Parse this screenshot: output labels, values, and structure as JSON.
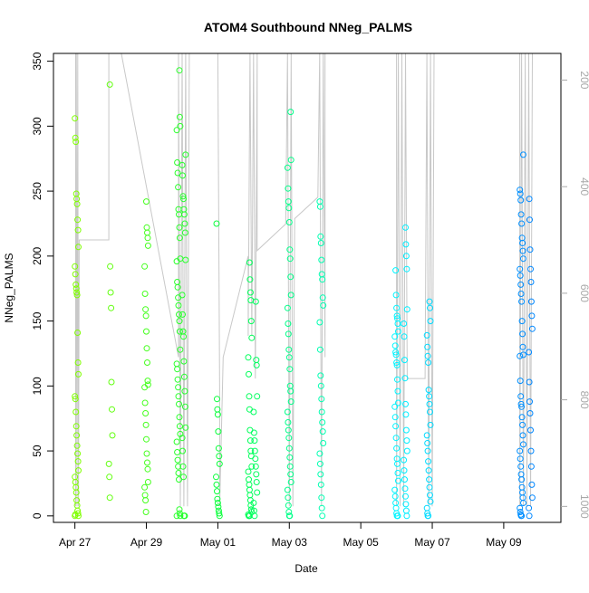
{
  "chart_data": {
    "type": "scatter",
    "title": "ATOM4 Southbound NNeg_PALMS",
    "xlabel": "Date",
    "ylabel": "NNeg_PALMS",
    "x_unit": "days since Apr 27 (00:00)",
    "xlim": [
      -0.6,
      13.6
    ],
    "ylim": [
      -5,
      356
    ],
    "x_ticks": [
      {
        "pos": 0,
        "label": "Apr 27"
      },
      {
        "pos": 2,
        "label": "Apr 29"
      },
      {
        "pos": 4,
        "label": "May 01"
      },
      {
        "pos": 6,
        "label": "May 03"
      },
      {
        "pos": 8,
        "label": "May 05"
      },
      {
        "pos": 10,
        "label": "May 07"
      },
      {
        "pos": 12,
        "label": "May 09"
      }
    ],
    "y_ticks": [
      0,
      50,
      100,
      150,
      200,
      250,
      300,
      350
    ],
    "right_axis": {
      "description": "pressure altitude (inverted)",
      "lim": [
        1030,
        150
      ],
      "ticks": [
        200,
        400,
        600,
        800,
        1000
      ],
      "color": "#a8a8a8"
    },
    "grid": false,
    "legend": "none",
    "colors": {
      "point_gradient": [
        "#80ff00",
        "#00ff40",
        "#00ffff",
        "#0080ff"
      ],
      "altitude_trace": "#c8c8c8",
      "axis": "#000000"
    },
    "sample_points_note": "points are sampled (x, y) estimates for each flight cluster",
    "clusters": [
      {
        "x": 0.05,
        "ys": [
          306,
          291,
          288,
          248,
          244,
          240,
          228,
          220,
          207,
          192,
          186,
          178,
          175,
          172,
          170,
          141,
          118,
          109,
          92,
          90,
          80,
          69,
          62,
          54,
          48,
          42,
          35,
          30,
          26,
          22,
          18,
          12,
          8,
          4,
          2,
          0,
          0,
          1
        ]
      },
      {
        "x": 1.0,
        "ys": [
          332,
          192,
          172,
          160,
          103,
          82,
          62,
          40,
          30,
          14
        ]
      },
      {
        "x": 2.0,
        "ys": [
          242,
          222,
          218,
          214,
          208,
          192,
          171,
          159,
          154,
          142,
          129,
          118,
          104,
          101,
          99,
          87,
          79,
          70,
          59,
          48,
          41,
          36,
          26,
          22,
          16,
          12,
          3
        ]
      },
      {
        "x": 2.9,
        "ys": [
          343,
          307,
          300,
          297,
          272,
          264,
          253,
          236,
          232,
          222,
          214,
          198,
          196,
          180,
          176,
          168,
          162,
          155,
          150,
          142,
          128,
          117,
          113,
          105,
          99,
          92,
          86,
          76,
          69,
          63,
          57,
          49,
          43,
          38,
          33,
          28,
          5,
          2,
          0,
          0
        ]
      },
      {
        "x": 3.05,
        "ys": [
          278,
          270,
          262,
          246,
          244,
          236,
          232,
          225,
          218,
          197,
          170,
          155,
          142,
          138,
          119,
          107,
          96,
          84,
          68,
          60,
          50,
          38,
          30,
          0,
          0,
          0
        ]
      },
      {
        "x": 4.0,
        "ys": [
          225,
          90,
          82,
          78,
          65,
          52,
          46,
          40,
          30,
          24,
          19,
          13,
          10,
          7,
          4,
          2,
          0
        ]
      },
      {
        "x": 4.9,
        "ys": [
          195,
          182,
          172,
          166,
          150,
          137,
          122,
          109,
          92,
          82,
          66,
          58,
          50,
          46,
          38,
          34,
          28,
          24,
          20,
          16,
          12,
          8,
          5,
          3,
          1,
          0,
          0,
          0
        ]
      },
      {
        "x": 5.05,
        "ys": [
          165,
          120,
          116,
          92,
          80,
          64,
          58,
          50,
          44,
          38,
          32,
          26,
          18,
          10,
          4,
          0
        ]
      },
      {
        "x": 6.0,
        "ys": [
          311,
          274,
          268,
          252,
          242,
          237,
          226,
          205,
          198,
          184,
          170,
          160,
          148,
          140,
          128,
          122,
          113,
          100,
          96,
          88,
          80,
          72,
          66,
          60,
          52,
          45,
          38,
          32,
          26,
          20,
          14,
          8,
          3,
          0,
          0
        ]
      },
      {
        "x": 6.9,
        "ys": [
          242,
          238,
          215,
          210,
          197,
          186,
          182,
          168,
          162,
          149,
          128,
          108,
          100,
          90,
          80,
          72,
          65,
          56,
          48,
          40,
          32,
          24,
          14,
          6,
          0
        ]
      },
      {
        "x": 9.0,
        "ys": [
          189,
          170,
          160,
          154,
          152,
          148,
          142,
          138,
          131,
          126,
          124,
          118,
          116,
          105,
          96,
          87,
          84,
          76,
          69,
          60,
          52,
          44,
          40,
          33,
          27,
          20,
          15,
          10,
          6,
          2,
          0,
          0,
          0
        ]
      },
      {
        "x": 9.25,
        "ys": [
          222,
          209,
          200,
          190,
          159,
          148,
          138,
          120,
          106,
          86,
          78,
          66,
          58,
          50,
          43,
          35,
          28,
          21,
          15,
          9,
          4,
          0
        ]
      },
      {
        "x": 9.9,
        "ys": [
          165,
          160,
          150,
          139,
          130,
          123,
          118,
          97,
          92,
          86,
          80,
          70,
          62,
          56,
          50,
          42,
          35,
          28,
          22,
          16,
          11,
          6,
          2,
          0,
          0
        ]
      },
      {
        "x": 12.5,
        "ys": [
          278,
          251,
          248,
          243,
          232,
          225,
          214,
          210,
          204,
          198,
          190,
          185,
          178,
          171,
          165,
          150,
          140,
          130,
          124,
          123,
          104,
          92,
          86,
          84,
          76,
          70,
          62,
          55,
          50,
          44,
          38,
          32,
          28,
          22,
          18,
          14,
          10,
          6,
          3,
          1,
          0,
          0
        ]
      },
      {
        "x": 12.75,
        "ys": [
          244,
          228,
          205,
          190,
          180,
          165,
          154,
          144,
          126,
          103,
          88,
          79,
          66,
          50,
          38,
          24,
          14,
          6,
          0
        ]
      }
    ],
    "altitude_trace": [
      {
        "x": 0.02,
        "p": 150
      },
      {
        "x": 0.02,
        "p": 1000
      },
      {
        "x": 0.04,
        "p": 150
      },
      {
        "x": 0.06,
        "p": 1000
      },
      {
        "x": 0.08,
        "p": 150
      },
      {
        "x": 0.1,
        "p": 1000
      },
      {
        "x": 0.12,
        "p": 500
      },
      {
        "x": 0.95,
        "p": 500
      },
      {
        "x": 0.95,
        "p": 150
      },
      {
        "x": 1.3,
        "p": 150
      },
      {
        "x": 2.9,
        "p": 720
      },
      {
        "x": 2.9,
        "p": 150
      },
      {
        "x": 2.95,
        "p": 1000
      },
      {
        "x": 3.0,
        "p": 150
      },
      {
        "x": 3.05,
        "p": 1000
      },
      {
        "x": 3.1,
        "p": 150
      },
      {
        "x": 3.15,
        "p": 1000
      },
      {
        "x": 3.2,
        "p": 150
      },
      {
        "x": 4.0,
        "p": 150
      },
      {
        "x": 4.05,
        "p": 790
      },
      {
        "x": 4.05,
        "p": 1000
      },
      {
        "x": 4.15,
        "p": 720
      },
      {
        "x": 4.85,
        "p": 530
      },
      {
        "x": 4.85,
        "p": 680
      },
      {
        "x": 4.9,
        "p": 150
      },
      {
        "x": 4.95,
        "p": 680
      },
      {
        "x": 5.0,
        "p": 150
      },
      {
        "x": 5.05,
        "p": 760
      },
      {
        "x": 5.1,
        "p": 150
      },
      {
        "x": 5.1,
        "p": 520
      },
      {
        "x": 5.9,
        "p": 470
      },
      {
        "x": 5.95,
        "p": 150
      },
      {
        "x": 6.0,
        "p": 1000
      },
      {
        "x": 6.05,
        "p": 150
      },
      {
        "x": 6.1,
        "p": 1000
      },
      {
        "x": 6.15,
        "p": 460
      },
      {
        "x": 6.8,
        "p": 420
      },
      {
        "x": 6.85,
        "p": 150
      },
      {
        "x": 6.9,
        "p": 1000
      },
      {
        "x": 6.95,
        "p": 150
      },
      {
        "x": 7.0,
        "p": 720
      },
      {
        "x": 7.0,
        "p": 150
      },
      {
        "x": 6.1,
        "p": 150
      },
      {
        "x": 9.0,
        "p": 150
      },
      {
        "x": 9.0,
        "p": 1000
      },
      {
        "x": 9.05,
        "p": 150
      },
      {
        "x": 9.1,
        "p": 1000
      },
      {
        "x": 9.15,
        "p": 150
      },
      {
        "x": 9.2,
        "p": 1000
      },
      {
        "x": 9.25,
        "p": 150
      },
      {
        "x": 9.3,
        "p": 760
      },
      {
        "x": 9.8,
        "p": 760
      },
      {
        "x": 9.85,
        "p": 150
      },
      {
        "x": 9.9,
        "p": 1000
      },
      {
        "x": 9.95,
        "p": 150
      },
      {
        "x": 10.0,
        "p": 1000
      },
      {
        "x": 10.05,
        "p": 150
      },
      {
        "x": 12.45,
        "p": 150
      },
      {
        "x": 12.45,
        "p": 1000
      },
      {
        "x": 12.5,
        "p": 150
      },
      {
        "x": 12.55,
        "p": 1000
      },
      {
        "x": 12.6,
        "p": 150
      },
      {
        "x": 12.65,
        "p": 1000
      },
      {
        "x": 12.7,
        "p": 150
      },
      {
        "x": 12.75,
        "p": 1000
      },
      {
        "x": 12.8,
        "p": 150
      }
    ]
  }
}
